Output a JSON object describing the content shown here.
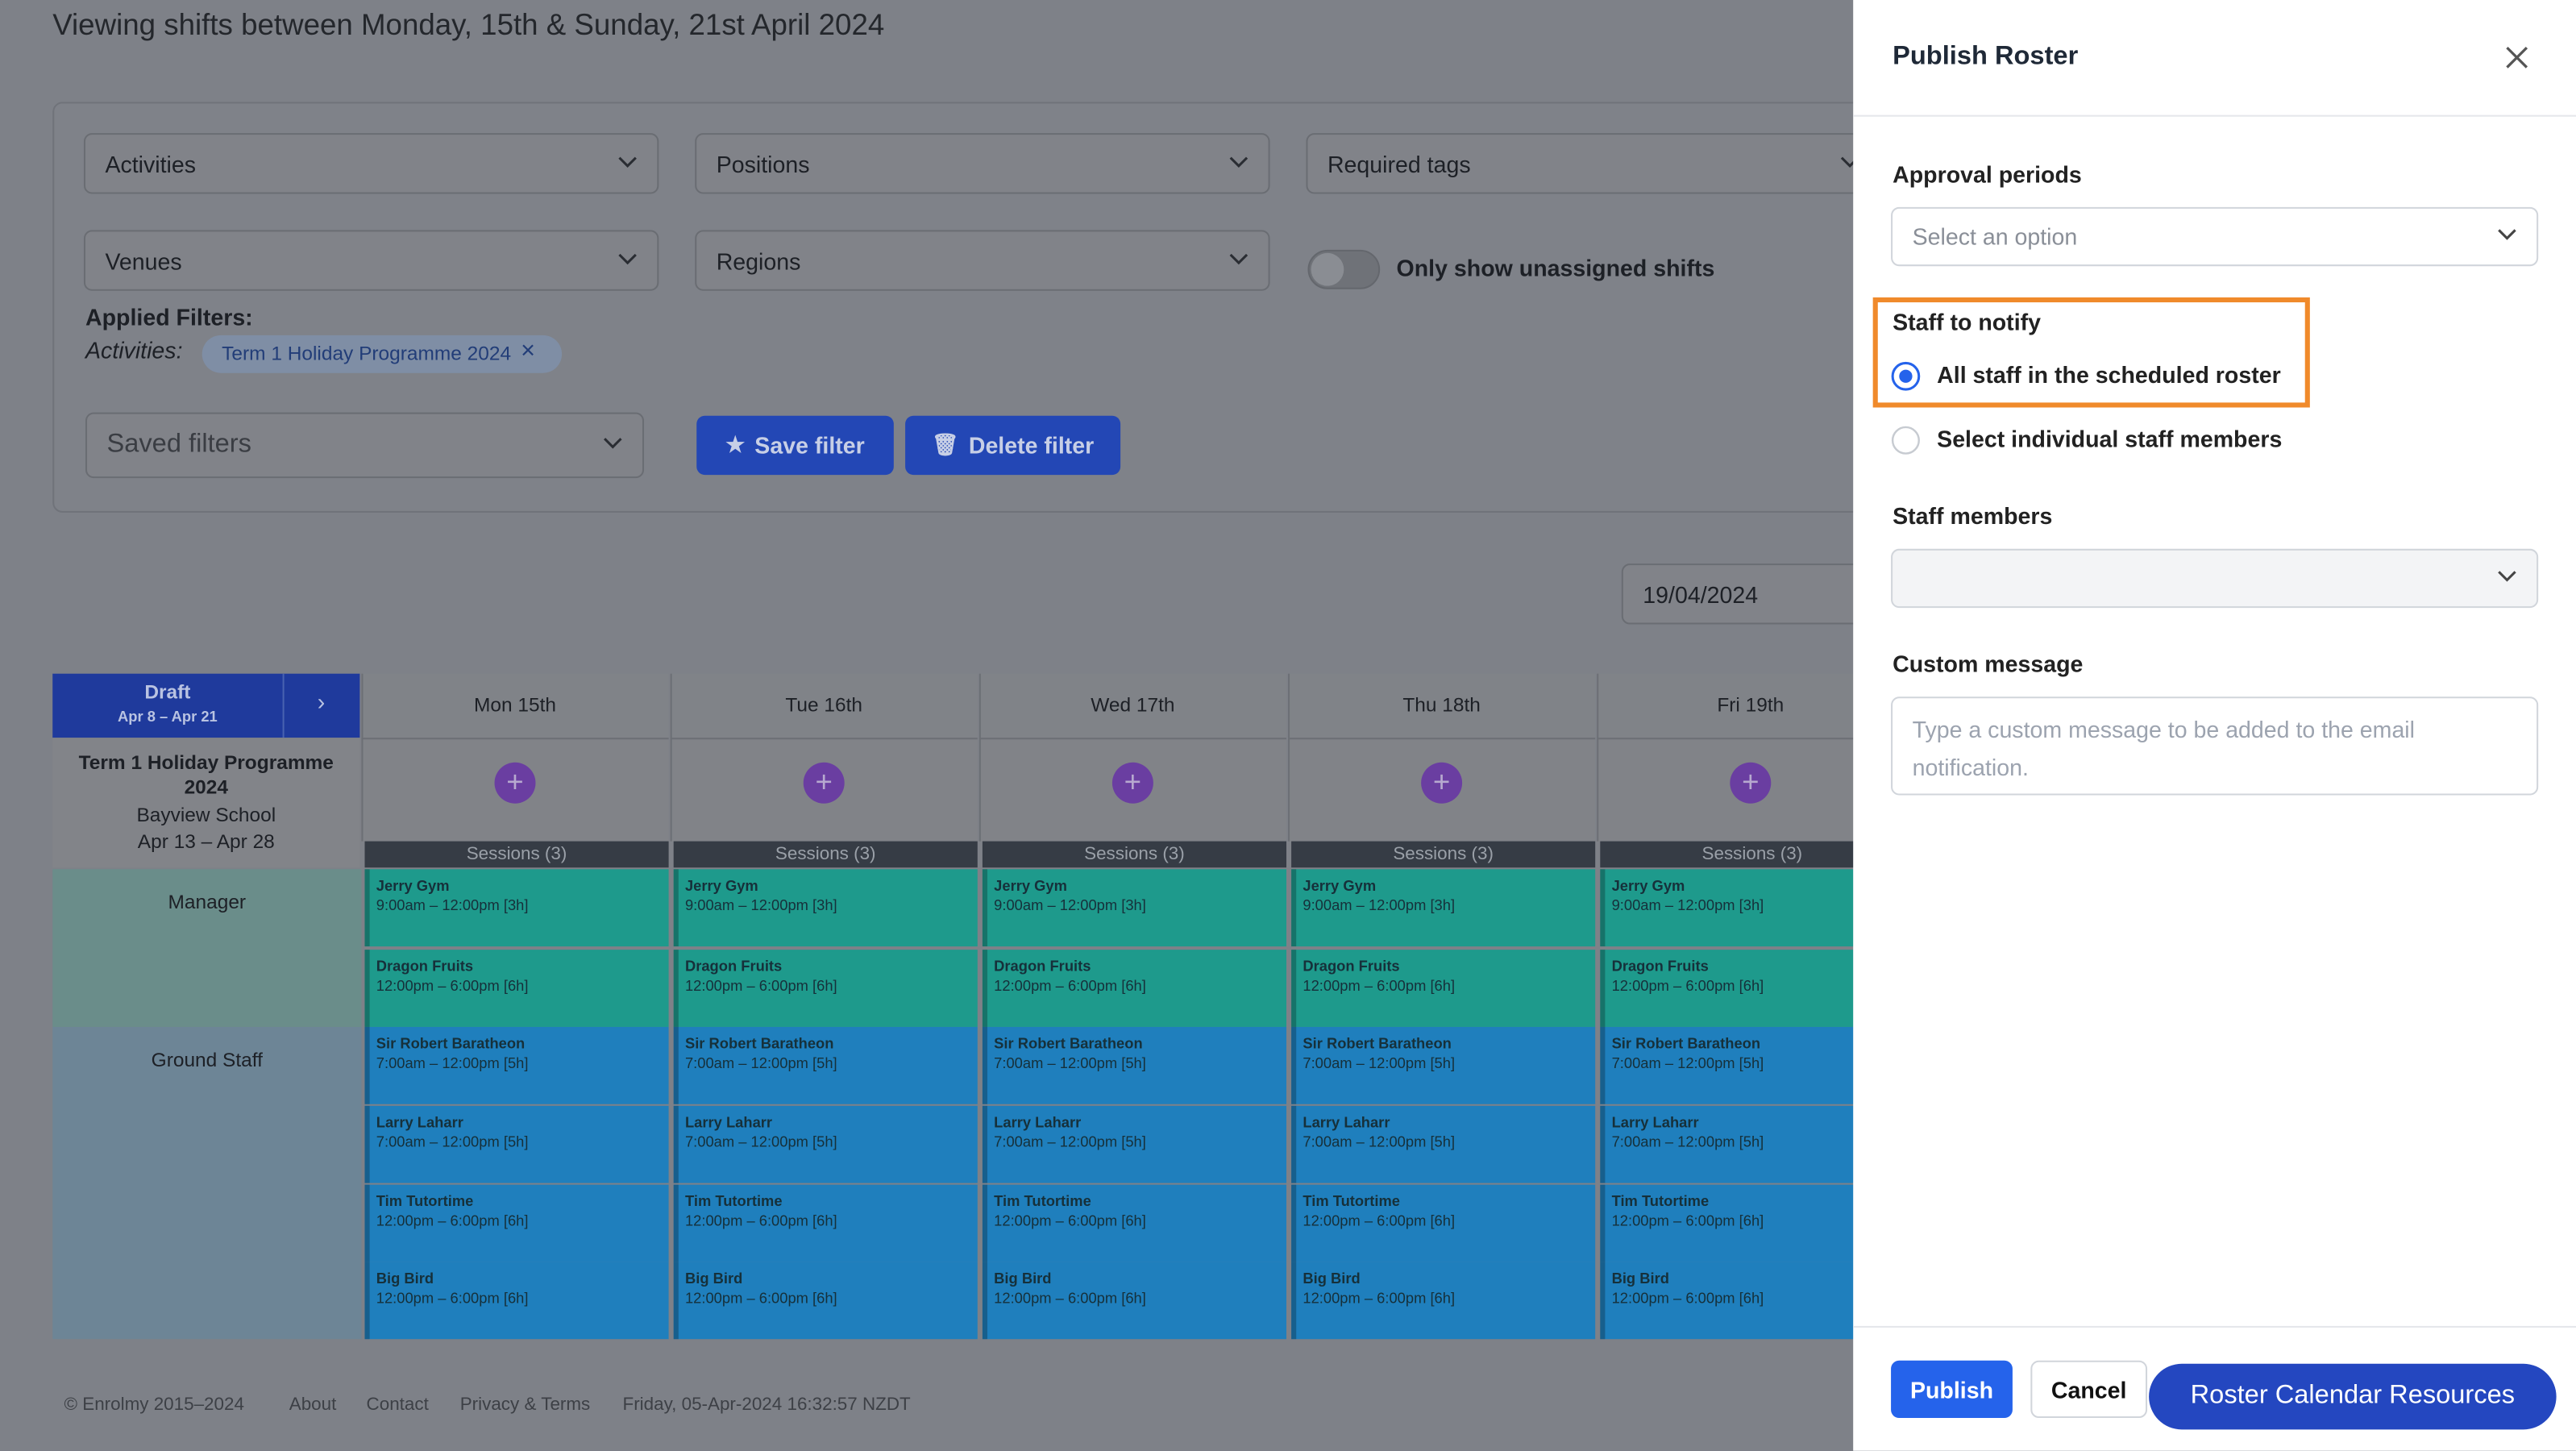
{
  "header": {
    "title": "Viewing shifts between Monday, 15th & Sunday, 21st April 2024"
  },
  "filters": {
    "dropdowns": [
      "Activities",
      "Positions",
      "Required tags",
      "Venues",
      "Regions"
    ],
    "toggle_label": "Only show unassigned shifts",
    "applied_title": "Applied Filters:",
    "applied_label": "Activities:",
    "applied_chip": "Term 1 Holiday Programme 2024",
    "saved_filters": "Saved filters",
    "save_button": "Save filter",
    "delete_button": "Delete filter"
  },
  "date_input": "19/04/2024",
  "roster": {
    "status": "Draft",
    "period": "Apr 8 – Apr 21",
    "programme": {
      "name": "Term 1 Holiday Programme 2024",
      "venue": "Bayview School",
      "dates": "Apr 13 – Apr 28"
    },
    "roles": [
      "Manager",
      "Ground Staff"
    ],
    "days": [
      {
        "label": "Mon 15th",
        "sessions": "Sessions (3)",
        "shifts": [
          {
            "name": "Jerry Gym",
            "time": "9:00am – 12:00pm [3h]"
          },
          {
            "name": "Dragon Fruits",
            "time": "12:00pm – 6:00pm [6h]"
          },
          {
            "name": "Sir Robert Baratheon",
            "time": "7:00am – 12:00pm [5h]"
          },
          {
            "name": "Larry Laharr",
            "time": "7:00am – 12:00pm [5h]"
          },
          {
            "name": "Tim Tutortime",
            "time": "12:00pm – 6:00pm [6h]"
          },
          {
            "name": "Big Bird",
            "time": "12:00pm – 6:00pm [6h]"
          }
        ]
      },
      {
        "label": "Tue 16th",
        "sessions": "Sessions (3)",
        "shifts": [
          {
            "name": "Jerry Gym",
            "time": "9:00am – 12:00pm [3h]"
          },
          {
            "name": "Dragon Fruits",
            "time": "12:00pm – 6:00pm [6h]"
          },
          {
            "name": "Sir Robert Baratheon",
            "time": "7:00am – 12:00pm [5h]"
          },
          {
            "name": "Larry Laharr",
            "time": "7:00am – 12:00pm [5h]"
          },
          {
            "name": "Tim Tutortime",
            "time": "12:00pm – 6:00pm [6h]"
          },
          {
            "name": "Big Bird",
            "time": "12:00pm – 6:00pm [6h]"
          }
        ]
      },
      {
        "label": "Wed 17th",
        "sessions": "Sessions (3)",
        "shifts": [
          {
            "name": "Jerry Gym",
            "time": "9:00am – 12:00pm [3h]"
          },
          {
            "name": "Dragon Fruits",
            "time": "12:00pm – 6:00pm [6h]"
          },
          {
            "name": "Sir Robert Baratheon",
            "time": "7:00am – 12:00pm [5h]"
          },
          {
            "name": "Larry Laharr",
            "time": "7:00am – 12:00pm [5h]"
          },
          {
            "name": "Tim Tutortime",
            "time": "12:00pm – 6:00pm [6h]"
          },
          {
            "name": "Big Bird",
            "time": "12:00pm – 6:00pm [6h]"
          }
        ]
      },
      {
        "label": "Thu 18th",
        "sessions": "Sessions (3)",
        "shifts": [
          {
            "name": "Jerry Gym",
            "time": "9:00am – 12:00pm [3h]"
          },
          {
            "name": "Dragon Fruits",
            "time": "12:00pm – 6:00pm [6h]"
          },
          {
            "name": "Sir Robert Baratheon",
            "time": "7:00am – 12:00pm [5h]"
          },
          {
            "name": "Larry Laharr",
            "time": "7:00am – 12:00pm [5h]"
          },
          {
            "name": "Tim Tutortime",
            "time": "12:00pm – 6:00pm [6h]"
          },
          {
            "name": "Big Bird",
            "time": "12:00pm – 6:00pm [6h]"
          }
        ]
      },
      {
        "label": "Fri 19th",
        "sessions": "Sessions (3)",
        "shifts": [
          {
            "name": "Jerry Gym",
            "time": "9:00am – 12:00pm [3h]"
          },
          {
            "name": "Dragon Fruits",
            "time": "12:00pm – 6:00pm [6h]"
          },
          {
            "name": "Sir Robert Baratheon",
            "time": "7:00am – 12:00pm [5h]"
          },
          {
            "name": "Larry Laharr",
            "time": "7:00am – 12:00pm [5h]"
          },
          {
            "name": "Tim Tutortime",
            "time": "12:00pm – 6:00pm [6h]"
          },
          {
            "name": "Big Bird",
            "time": "12:00pm – 6:00pm [6h]"
          }
        ]
      }
    ]
  },
  "footer": {
    "links": [
      "© Enrolmy  2015–2024",
      "About",
      "Contact",
      "Privacy & Terms",
      "Friday, 05-Apr-2024 16:32:57 NZDT"
    ]
  },
  "panel": {
    "title": "Publish Roster",
    "approval_label": "Approval periods",
    "approval_placeholder": "Select an option",
    "notify_label": "Staff to notify",
    "options": [
      "All staff in the scheduled roster",
      "Select individual staff members"
    ],
    "members_label": "Staff members",
    "message_label": "Custom message",
    "message_placeholder": "Type a custom message to be added to the email notification.",
    "publish": "Publish",
    "cancel": "Cancel",
    "resources": "Roster Calendar Resources"
  }
}
